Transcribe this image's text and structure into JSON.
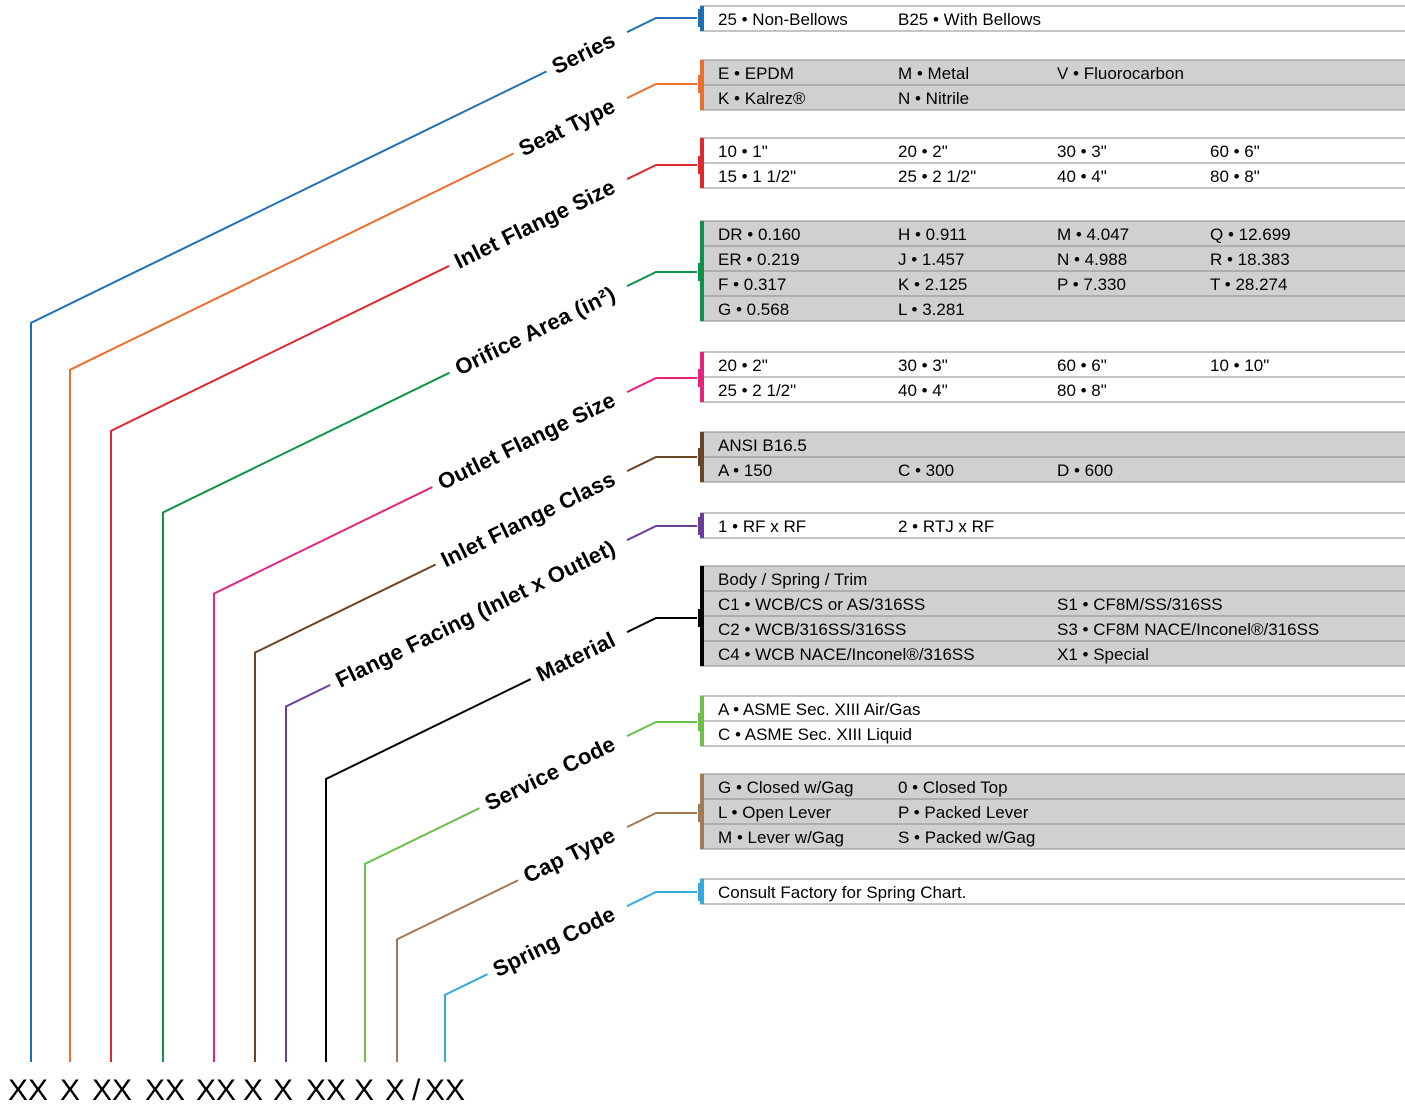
{
  "model_code": "XX X XX XX XX X X XX X X / XX",
  "code_chars": [
    "XX",
    "X",
    "XX",
    "XX",
    "XX",
    "X",
    "X",
    "XX",
    "X",
    "X",
    "/",
    "XX"
  ],
  "fields": [
    {
      "label": "Series",
      "color": "#1f6fb4",
      "shaded": false,
      "rows": [
        [
          "25 • Non-Bellows",
          "B25 • With Bellows"
        ]
      ]
    },
    {
      "label": "Seat Type",
      "color": "#ec6d2c",
      "shaded": true,
      "rows": [
        [
          "E • EPDM",
          "M • Metal",
          "V • Fluorocarbon"
        ],
        [
          "K • Kalrez®",
          "N • Nitrile"
        ]
      ]
    },
    {
      "label": "Inlet Flange Size",
      "color": "#e0282e",
      "shaded": false,
      "rows": [
        [
          "10 • 1\"",
          "20 • 2\"",
          "30 • 3\"",
          "60 • 6\""
        ],
        [
          "15 • 1 1/2\"",
          "25 • 2 1/2\"",
          "40 • 4\"",
          "80 • 8\""
        ]
      ]
    },
    {
      "label": "Orifice Area (in²)",
      "color": "#0b9347",
      "shaded": true,
      "rows": [
        [
          "DR • 0.160",
          "H • 0.911",
          "M • 4.047",
          "Q • 12.699"
        ],
        [
          "ER • 0.219",
          "J • 1.457",
          "N • 4.988",
          "R • 18.383"
        ],
        [
          "F • 0.317",
          "K • 2.125",
          "P • 7.330",
          "T • 28.274"
        ],
        [
          "G • 0.568",
          "L • 3.281"
        ]
      ]
    },
    {
      "label": "Outlet Flange Size",
      "color": "#e8237f",
      "shaded": false,
      "rows": [
        [
          "20 • 2\"",
          "30 • 3\"",
          "60 • 6\"",
          "10 • 10\""
        ],
        [
          "25 • 2 1/2\"",
          "40 • 4\"",
          "80 • 8\""
        ]
      ]
    },
    {
      "label": "Inlet Flange Class",
      "color": "#6b4423",
      "shaded": true,
      "rows": [
        [
          "ANSI B16.5"
        ],
        [
          "A • 150",
          "C • 300",
          "D • 600"
        ]
      ]
    },
    {
      "label": "Flange Facing (Inlet x Outlet)",
      "color": "#6a3c9b",
      "shaded": false,
      "rows": [
        [
          "1 • RF x RF",
          "2 • RTJ x RF"
        ]
      ]
    },
    {
      "label": "Material",
      "color": "#000000",
      "shaded": true,
      "rows": [
        [
          "Body / Spring / Trim"
        ],
        [
          "C1 • WCB/CS or AS/316SS",
          "S1 • CF8M/SS/316SS"
        ],
        [
          "C2 • WCB/316SS/316SS",
          "S3 • CF8M NACE/Inconel®/316SS"
        ],
        [
          "C4 • WCB NACE/Inconel®/316SS",
          "X1 • Special"
        ]
      ]
    },
    {
      "label": "Service Code",
      "color": "#6cc04a",
      "shaded": false,
      "rows": [
        [
          "A • ASME Sec. XIII Air/Gas"
        ],
        [
          "C • ASME Sec. XIII Liquid"
        ]
      ]
    },
    {
      "label": "Cap Type",
      "color": "#a17a52",
      "shaded": true,
      "rows": [
        [
          "G • Closed w/Gag",
          "0 • Closed Top"
        ],
        [
          "L • Open Lever",
          "P • Packed Lever"
        ],
        [
          "M • Lever w/Gag",
          "S • Packed w/Gag"
        ]
      ]
    },
    {
      "label": "Spring Code",
      "color": "#34a9dc",
      "shaded": false,
      "rows": [
        [
          "Consult Factory for Spring Chart."
        ]
      ]
    }
  ]
}
